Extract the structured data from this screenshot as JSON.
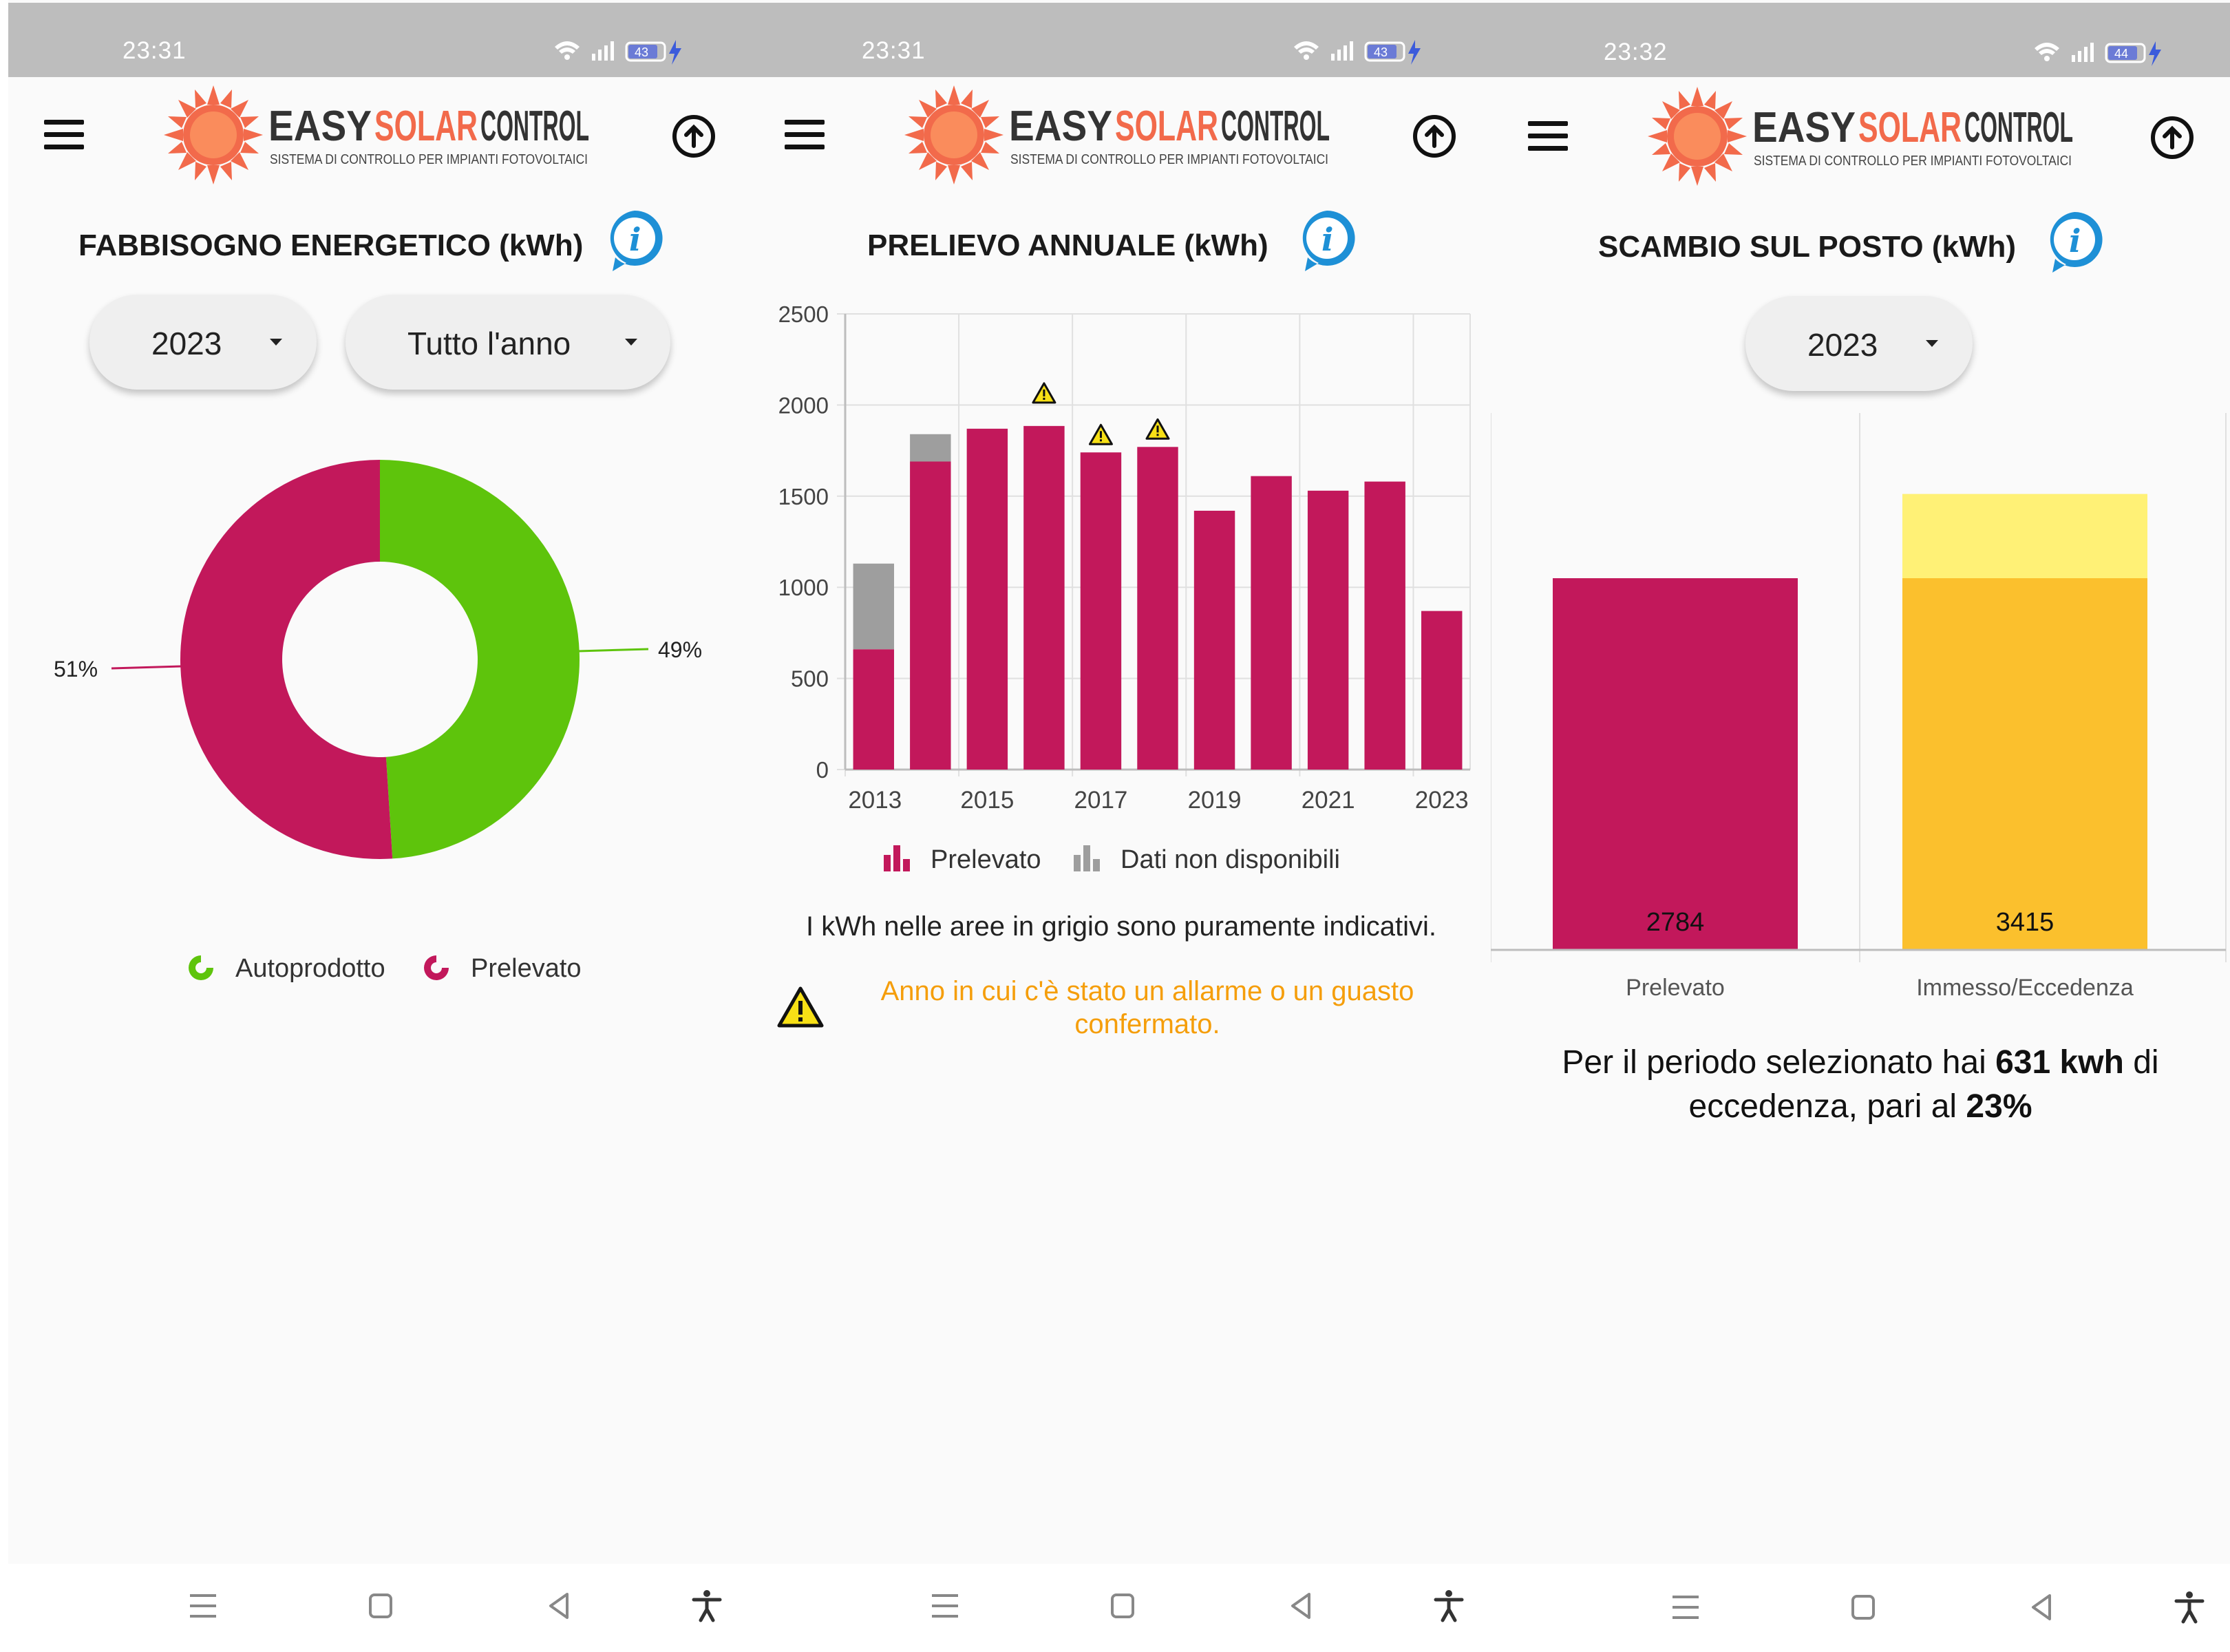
{
  "brand": {
    "name_easy": "EASY",
    "name_solar": "SOLAR",
    "name_control": "CONTROL",
    "tagline": "SISTEMA DI CONTROLLO PER IMPIANTI FOTOVOLTAICI"
  },
  "colors": {
    "prelevato": "#c2185b",
    "autoprodotto": "#5ec40c",
    "unavailable": "#9e9e9e",
    "immesso": "#fbc02d",
    "eccedenza": "#fff176",
    "warning_text": "#f59e0b",
    "info_blue": "#1e90d6",
    "logo_orange": "#f26a4b"
  },
  "screens": [
    {
      "status": {
        "time": "23:31",
        "battery": "43"
      },
      "title": "FABBISOGNO ENERGETICO (kWh)",
      "year_dropdown": "2023",
      "period_dropdown": "Tutto l'anno",
      "donut": {
        "label_left": "51%",
        "label_right": "49%"
      },
      "legend": {
        "autoprodotto": "Autoprodotto",
        "prelevato": "Prelevato"
      }
    },
    {
      "status": {
        "time": "23:31",
        "battery": "43"
      },
      "title": "PRELIEVO ANNUALE (kWh)",
      "legend": {
        "prelevato": "Prelevato",
        "unavailable": "Dati non disponibili"
      },
      "note": "I kWh nelle aree in grigio sono puramente indicativi.",
      "warning_line1": "Anno in cui c'è stato un allarme o un guasto",
      "warning_line2": "confermato."
    },
    {
      "status": {
        "time": "23:32",
        "battery": "44"
      },
      "title": "SCAMBIO SUL POSTO (kWh)",
      "year_dropdown": "2023",
      "bar_labels": {
        "prelevato": "2784",
        "immesso": "3415"
      },
      "categories": {
        "prelevato": "Prelevato",
        "immesso": "Immesso/Eccedenza"
      },
      "summary": {
        "part1": "Per il periodo selezionato hai ",
        "bold1": "631 kwh",
        "part2": " di",
        "part3": "eccedenza, pari al ",
        "bold2": "23%"
      }
    }
  ],
  "chart_data": [
    {
      "type": "pie",
      "labels": [
        "Autoprodotto",
        "Prelevato"
      ],
      "values": [
        49,
        51
      ],
      "units": "%"
    },
    {
      "type": "bar",
      "title": "PRELIEVO ANNUALE (kWh)",
      "categories": [
        "2013",
        "2014",
        "2015",
        "2016",
        "2017",
        "2018",
        "2019",
        "2020",
        "2021",
        "2022",
        "2023"
      ],
      "tick_labels": [
        "2013",
        "2015",
        "2017",
        "2019",
        "2021",
        "2023"
      ],
      "ylim": [
        0,
        2500
      ],
      "yticks": [
        0,
        500,
        1000,
        1500,
        2000,
        2500
      ],
      "series": [
        {
          "name": "Prelevato",
          "values": [
            660,
            1690,
            1870,
            1885,
            1740,
            1770,
            1420,
            1610,
            1530,
            1580,
            870
          ]
        },
        {
          "name": "Dati non disponibili",
          "values": [
            470,
            150,
            0,
            0,
            0,
            0,
            0,
            0,
            0,
            0,
            0
          ]
        }
      ],
      "warning_years": [
        "2016",
        "2017",
        "2018"
      ],
      "grid": true,
      "legend": "bottom"
    },
    {
      "type": "bar",
      "title": "SCAMBIO SUL POSTO (kWh)",
      "categories": [
        "Prelevato",
        "Immesso/Eccedenza"
      ],
      "series": [
        {
          "name": "base",
          "values": [
            2784,
            2784
          ]
        },
        {
          "name": "Eccedenza",
          "values": [
            0,
            631
          ]
        }
      ],
      "data_labels": [
        "2784",
        "3415"
      ],
      "stacked": true
    }
  ]
}
